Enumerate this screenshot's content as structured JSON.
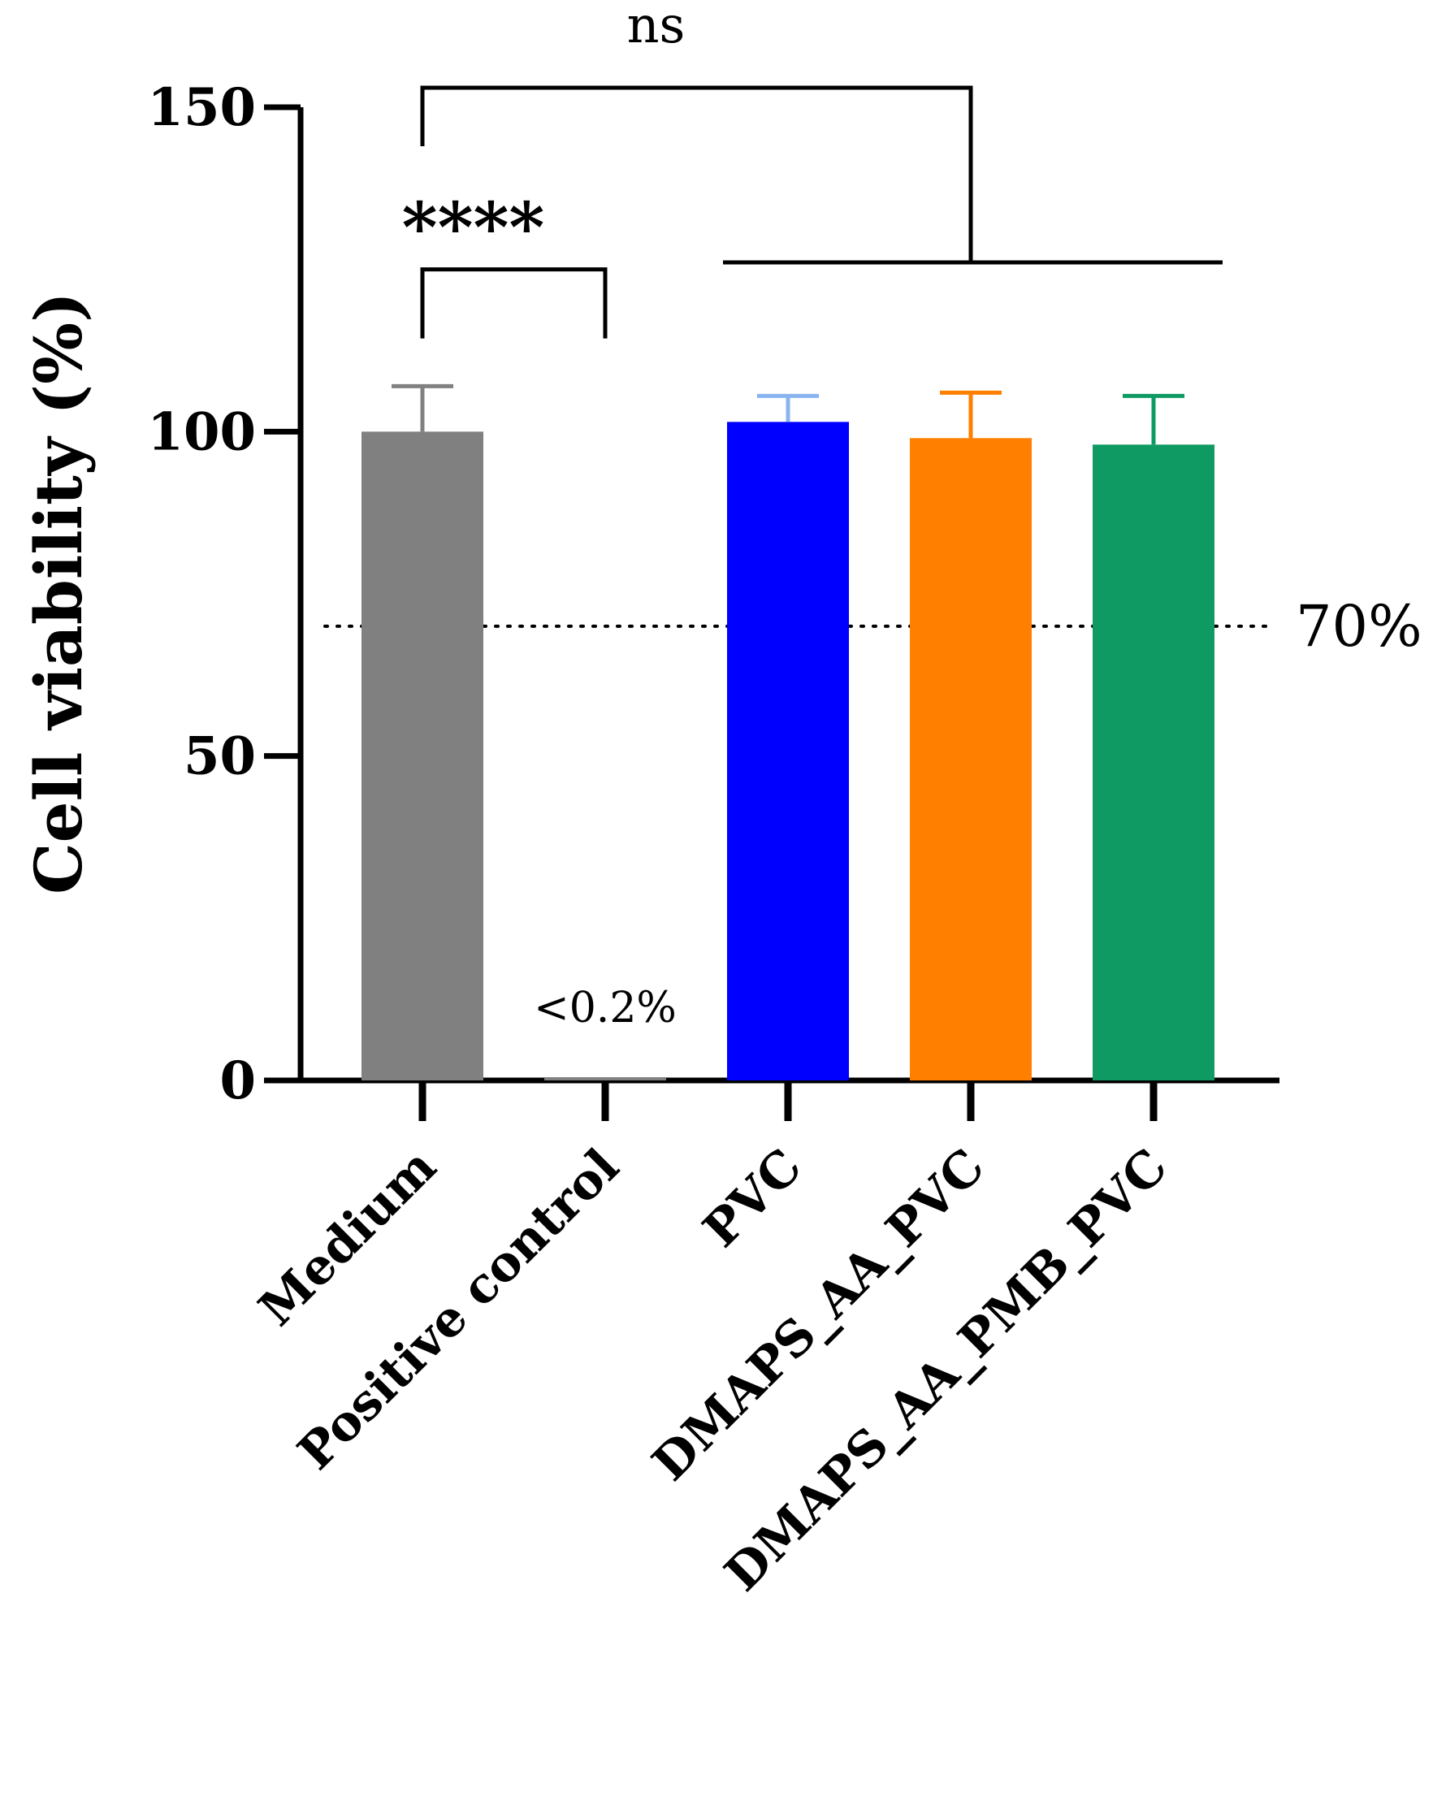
{
  "chart_data": {
    "type": "bar",
    "title": "",
    "xlabel": "",
    "ylabel": "Cell viability (%)",
    "ylim": [
      0,
      150
    ],
    "yticks": [
      0,
      50,
      100,
      150
    ],
    "grid": false,
    "categories": [
      "Medium",
      "Positive control",
      "PVC",
      "DMAPS_AA_PVC",
      "DMAPS_AA_PMB_PVC"
    ],
    "values": [
      100,
      0.2,
      101.5,
      99,
      98
    ],
    "errors": [
      7,
      0,
      4,
      7,
      7.5
    ],
    "colors": [
      "#808080",
      "#808080",
      "#0000ff",
      "#ff7f00",
      "#0e9a62"
    ],
    "error_colors": [
      "#808080",
      "#808080",
      "#8ab4f0",
      "#ff7f00",
      "#0e9a62"
    ],
    "threshold": {
      "value": 70,
      "label": "70%",
      "style": "dotted"
    },
    "bar_annotations": [
      {
        "category": "Positive control",
        "text": "<0.2%"
      }
    ],
    "significance": [
      {
        "label": "****",
        "from": "Medium",
        "to": "Positive control",
        "y": 125
      },
      {
        "label": "ns",
        "from": "Medium",
        "to_group": [
          "PVC",
          "DMAPS_AA_PVC",
          "DMAPS_AA_PMB_PVC"
        ],
        "y": 153
      }
    ]
  }
}
